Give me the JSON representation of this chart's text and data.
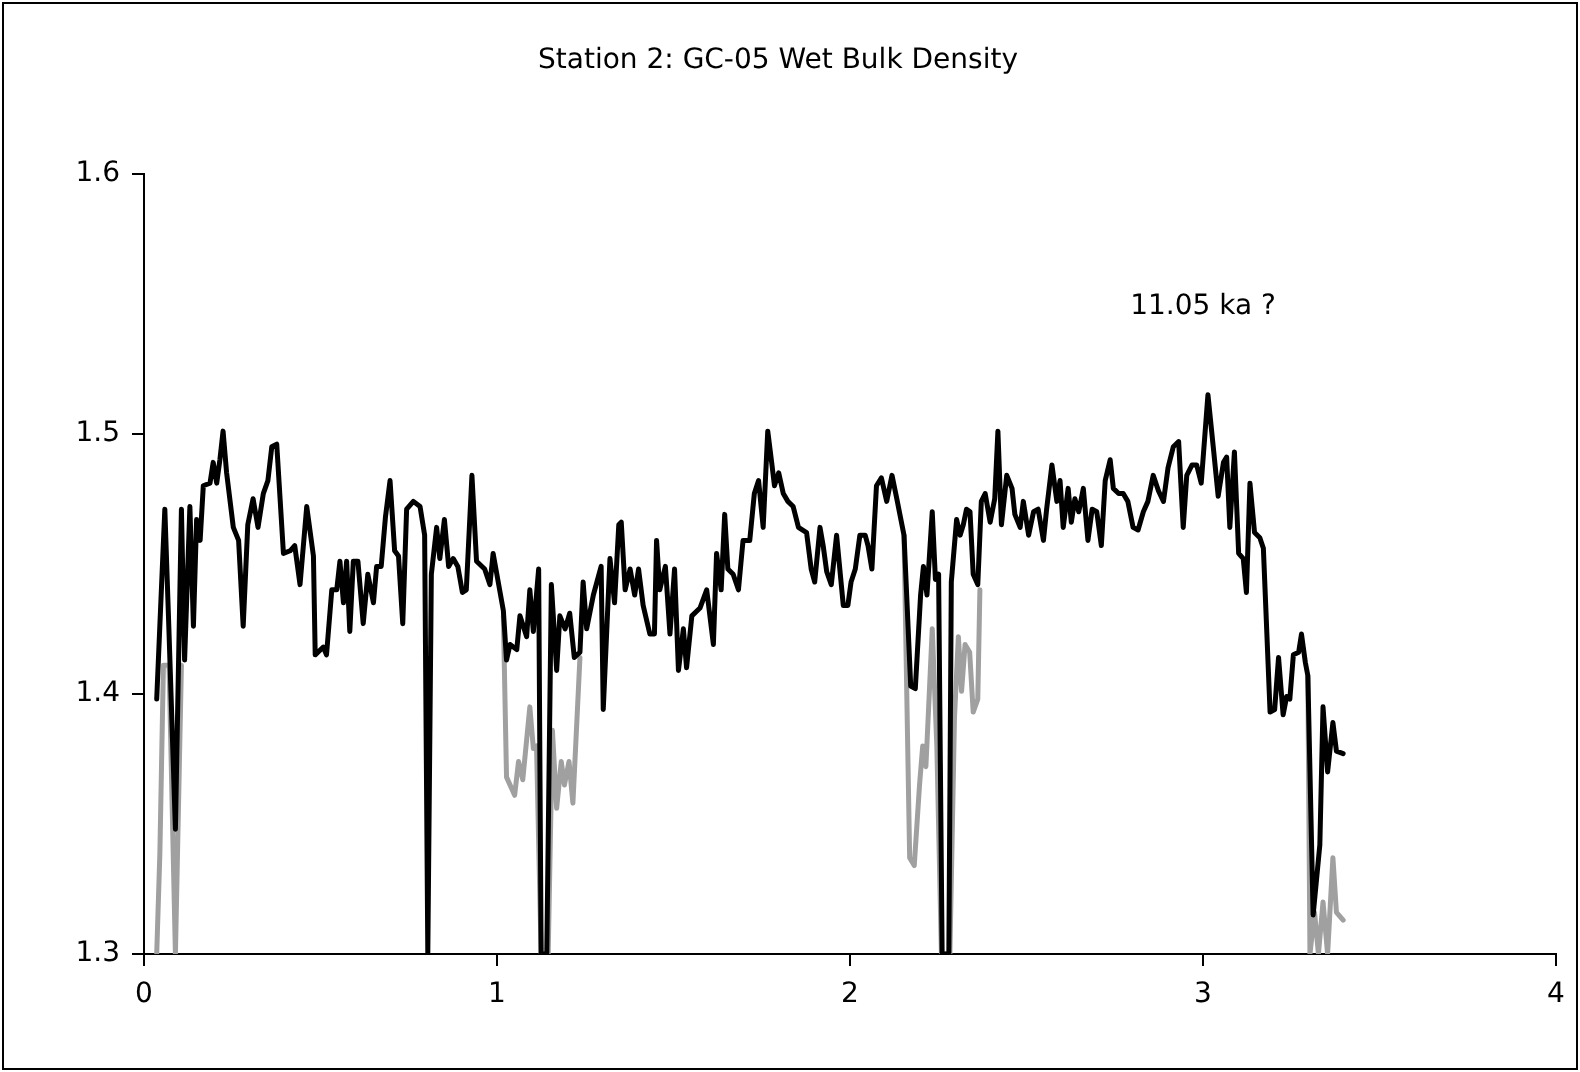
{
  "chart_data": {
    "type": "line",
    "title": "Station 2: GC-05 Wet Bulk Density",
    "xlim": [
      0,
      4
    ],
    "xticks": [
      0,
      1,
      2,
      3,
      4
    ],
    "ylim": [
      1.3,
      1.6
    ],
    "yticks": [
      1.3,
      1.4,
      1.5,
      1.6
    ],
    "grid": false,
    "legend": false,
    "marker": "none",
    "annotations": [
      "11.05 ka ?"
    ],
    "series": [
      {
        "color": "#000000",
        "x": [
          0.036,
          0.059,
          0.071,
          0.089,
          0.106,
          0.115,
          0.13,
          0.14,
          0.149,
          0.159,
          0.168,
          0.187,
          0.196,
          0.206,
          0.215,
          0.224,
          0.234,
          0.253,
          0.268,
          0.281,
          0.294,
          0.309,
          0.323,
          0.338,
          0.351,
          0.362,
          0.376,
          0.395,
          0.414,
          0.427,
          0.442,
          0.461,
          0.48,
          0.485,
          0.508,
          0.517,
          0.532,
          0.546,
          0.555,
          0.565,
          0.574,
          0.583,
          0.593,
          0.606,
          0.621,
          0.634,
          0.65,
          0.659,
          0.672,
          0.684,
          0.697,
          0.71,
          0.721,
          0.733,
          0.744,
          0.763,
          0.782,
          0.795,
          0.804,
          0.814,
          0.829,
          0.838,
          0.851,
          0.863,
          0.876,
          0.889,
          0.902,
          0.913,
          0.929,
          0.942,
          0.965,
          0.98,
          0.989,
          1.018,
          1.027,
          1.037,
          1.056,
          1.065,
          1.084,
          1.093,
          1.103,
          1.118,
          1.125,
          1.141,
          1.154,
          1.169,
          1.178,
          1.193,
          1.206,
          1.219,
          1.235,
          1.244,
          1.254,
          1.273,
          1.295,
          1.301,
          1.32,
          1.333,
          1.345,
          1.352,
          1.363,
          1.377,
          1.39,
          1.401,
          1.414,
          1.433,
          1.446,
          1.452,
          1.461,
          1.477,
          1.49,
          1.503,
          1.514,
          1.528,
          1.537,
          1.552,
          1.575,
          1.594,
          1.613,
          1.622,
          1.635,
          1.645,
          1.654,
          1.669,
          1.684,
          1.697,
          1.716,
          1.729,
          1.741,
          1.754,
          1.767,
          1.779,
          1.786,
          1.798,
          1.811,
          1.824,
          1.839,
          1.854,
          1.877,
          1.89,
          1.9,
          1.915,
          1.924,
          1.934,
          1.947,
          1.962,
          1.981,
          1.994,
          2.003,
          2.015,
          2.028,
          2.043,
          2.051,
          2.062,
          2.075,
          2.089,
          2.104,
          2.119,
          2.134,
          2.153,
          2.172,
          2.185,
          2.2,
          2.208,
          2.218,
          2.233,
          2.242,
          2.251,
          2.261,
          2.28,
          2.287,
          2.302,
          2.312,
          2.321,
          2.33,
          2.34,
          2.349,
          2.362,
          2.372,
          2.383,
          2.397,
          2.41,
          2.419,
          2.429,
          2.444,
          2.459,
          2.467,
          2.482,
          2.491,
          2.506,
          2.52,
          2.533,
          2.548,
          2.557,
          2.572,
          2.586,
          2.595,
          2.604,
          2.618,
          2.627,
          2.637,
          2.648,
          2.661,
          2.674,
          2.686,
          2.699,
          2.712,
          2.723,
          2.737,
          2.746,
          2.761,
          2.774,
          2.787,
          2.802,
          2.816,
          2.831,
          2.844,
          2.859,
          2.874,
          2.888,
          2.901,
          2.916,
          2.931,
          2.944,
          2.954,
          2.969,
          2.982,
          2.995,
          3.014,
          3.029,
          3.043,
          3.058,
          3.067,
          3.076,
          3.089,
          3.101,
          3.114,
          3.123,
          3.133,
          3.146,
          3.161,
          3.171,
          3.19,
          3.203,
          3.214,
          3.227,
          3.237,
          3.246,
          3.256,
          3.271,
          3.279,
          3.29,
          3.297,
          3.312,
          3.331,
          3.34,
          3.353,
          3.368,
          3.378,
          3.397
        ],
        "values": [
          1.398,
          1.471,
          1.423,
          1.348,
          1.471,
          1.413,
          1.472,
          1.426,
          1.467,
          1.459,
          1.48,
          1.481,
          1.489,
          1.481,
          1.49,
          1.501,
          1.485,
          1.464,
          1.459,
          1.426,
          1.465,
          1.475,
          1.464,
          1.477,
          1.482,
          1.495,
          1.496,
          1.454,
          1.455,
          1.457,
          1.442,
          1.472,
          1.453,
          1.415,
          1.418,
          1.415,
          1.44,
          1.44,
          1.451,
          1.435,
          1.451,
          1.424,
          1.451,
          1.451,
          1.427,
          1.446,
          1.435,
          1.449,
          1.449,
          1.468,
          1.482,
          1.455,
          1.453,
          1.427,
          1.471,
          1.474,
          1.472,
          1.461,
          1.3,
          1.446,
          1.464,
          1.452,
          1.467,
          1.449,
          1.452,
          1.449,
          1.439,
          1.44,
          1.484,
          1.451,
          1.448,
          1.442,
          1.454,
          1.432,
          1.413,
          1.419,
          1.417,
          1.43,
          1.422,
          1.44,
          1.424,
          1.448,
          1.3,
          1.3,
          1.442,
          1.409,
          1.43,
          1.425,
          1.431,
          1.414,
          1.416,
          1.443,
          1.425,
          1.438,
          1.449,
          1.394,
          1.452,
          1.435,
          1.465,
          1.466,
          1.44,
          1.448,
          1.438,
          1.448,
          1.434,
          1.423,
          1.423,
          1.459,
          1.44,
          1.449,
          1.423,
          1.448,
          1.409,
          1.425,
          1.41,
          1.43,
          1.433,
          1.44,
          1.419,
          1.454,
          1.44,
          1.469,
          1.448,
          1.446,
          1.44,
          1.459,
          1.459,
          1.477,
          1.482,
          1.464,
          1.501,
          1.488,
          1.48,
          1.485,
          1.477,
          1.474,
          1.472,
          1.464,
          1.462,
          1.448,
          1.443,
          1.464,
          1.457,
          1.447,
          1.442,
          1.461,
          1.434,
          1.434,
          1.443,
          1.448,
          1.461,
          1.461,
          1.457,
          1.448,
          1.48,
          1.483,
          1.474,
          1.484,
          1.474,
          1.461,
          1.403,
          1.402,
          1.438,
          1.449,
          1.438,
          1.47,
          1.444,
          1.446,
          1.3,
          1.3,
          1.443,
          1.467,
          1.461,
          1.465,
          1.471,
          1.47,
          1.446,
          1.442,
          1.474,
          1.477,
          1.466,
          1.475,
          1.501,
          1.465,
          1.484,
          1.479,
          1.469,
          1.464,
          1.474,
          1.461,
          1.47,
          1.471,
          1.459,
          1.471,
          1.488,
          1.474,
          1.482,
          1.464,
          1.479,
          1.466,
          1.475,
          1.47,
          1.479,
          1.459,
          1.471,
          1.47,
          1.457,
          1.482,
          1.49,
          1.479,
          1.477,
          1.477,
          1.474,
          1.464,
          1.463,
          1.47,
          1.474,
          1.484,
          1.478,
          1.474,
          1.487,
          1.495,
          1.497,
          1.464,
          1.484,
          1.488,
          1.488,
          1.481,
          1.515,
          1.495,
          1.476,
          1.489,
          1.491,
          1.464,
          1.493,
          1.454,
          1.452,
          1.439,
          1.481,
          1.462,
          1.46,
          1.456,
          1.393,
          1.394,
          1.414,
          1.392,
          1.399,
          1.398,
          1.415,
          1.416,
          1.423,
          1.412,
          1.407,
          1.315,
          1.342,
          1.395,
          1.37,
          1.389,
          1.378,
          1.377
        ]
      },
      {
        "color": "#a0a0a0",
        "x": [
          0.036,
          0.045,
          0.055,
          0.071,
          0.089,
          0.106,
          0.5,
          1.018,
          1.027,
          1.05,
          1.061,
          1.073,
          1.093,
          1.103,
          1.112,
          1.125,
          1.145,
          1.157,
          1.169,
          1.182,
          1.191,
          1.204,
          1.215,
          1.235,
          1.7,
          2.153,
          2.169,
          2.182,
          2.197,
          2.206,
          2.215,
          2.233,
          2.246,
          2.259,
          2.283,
          2.296,
          2.307,
          2.316,
          2.326,
          2.339,
          2.349,
          2.362,
          2.368,
          2.8,
          3.297,
          3.303,
          3.316,
          3.327,
          3.34,
          3.353,
          3.368,
          3.378,
          3.397
        ],
        "values": [
          1.3,
          1.339,
          1.411,
          1.411,
          1.3,
          1.411,
          null,
          1.43,
          1.368,
          1.361,
          1.374,
          1.367,
          1.395,
          1.379,
          1.38,
          1.3,
          1.3,
          1.386,
          1.356,
          1.374,
          1.365,
          1.374,
          1.358,
          1.414,
          null,
          1.461,
          1.337,
          1.334,
          1.365,
          1.38,
          1.372,
          1.425,
          1.38,
          1.3,
          1.3,
          1.391,
          1.422,
          1.401,
          1.419,
          1.416,
          1.393,
          1.398,
          1.44,
          null,
          1.407,
          1.3,
          1.316,
          1.3,
          1.32,
          1.3,
          1.337,
          1.316,
          1.313
        ]
      }
    ]
  }
}
